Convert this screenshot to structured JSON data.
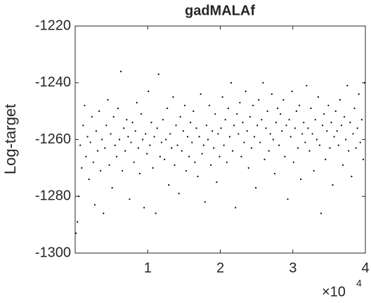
{
  "chart_data": {
    "type": "scatter",
    "title": "gadMALAf",
    "y_label": "Log-target",
    "x_multiplier": {
      "base": "×10",
      "exponent": "4"
    },
    "xlim": [
      0,
      40000
    ],
    "xticks": [
      {
        "value": 10000,
        "label": "1"
      },
      {
        "value": 20000,
        "label": "2"
      },
      {
        "value": 30000,
        "label": "3"
      },
      {
        "value": 40000,
        "label": "4"
      }
    ],
    "ylim": [
      -1300,
      -1220
    ],
    "yticks": [
      -1300,
      -1280,
      -1260,
      -1240,
      -1220
    ],
    "color": "#000000",
    "x": [
      100,
      300,
      500,
      700,
      900,
      1100,
      1300,
      1500,
      1700,
      1900,
      2100,
      2300,
      2500,
      2700,
      2900,
      3100,
      3300,
      3500,
      3700,
      3900,
      4100,
      4300,
      4500,
      4700,
      4900,
      5100,
      5300,
      5500,
      5700,
      5900,
      6100,
      6300,
      6500,
      6700,
      6900,
      7100,
      7300,
      7500,
      7700,
      7900,
      8100,
      8300,
      8500,
      8700,
      8900,
      9100,
      9300,
      9500,
      9700,
      9900,
      10100,
      10300,
      10500,
      10700,
      10900,
      11100,
      11300,
      11500,
      11700,
      11900,
      12100,
      12300,
      12500,
      12700,
      12900,
      13100,
      13300,
      13500,
      13700,
      13900,
      14100,
      14300,
      14500,
      14700,
      14900,
      15100,
      15300,
      15500,
      15700,
      15900,
      16100,
      16300,
      16500,
      16700,
      16900,
      17100,
      17300,
      17500,
      17700,
      17900,
      18100,
      18300,
      18500,
      18700,
      18900,
      19100,
      19300,
      19500,
      19700,
      19900,
      20100,
      20300,
      20500,
      20700,
      20900,
      21100,
      21300,
      21500,
      21700,
      21900,
      22100,
      22300,
      22500,
      22700,
      22900,
      23100,
      23300,
      23500,
      23700,
      23900,
      24100,
      24300,
      24500,
      24700,
      24900,
      25100,
      25300,
      25500,
      25700,
      25900,
      26100,
      26300,
      26500,
      26700,
      26900,
      27100,
      27300,
      27500,
      27700,
      27900,
      28100,
      28300,
      28500,
      28700,
      28900,
      29100,
      29300,
      29500,
      29700,
      29900,
      30100,
      30300,
      30500,
      30700,
      30900,
      31100,
      31300,
      31500,
      31700,
      31900,
      32100,
      32300,
      32500,
      32700,
      32900,
      33100,
      33300,
      33500,
      33700,
      33900,
      34100,
      34300,
      34500,
      34700,
      34900,
      35100,
      35300,
      35500,
      35700,
      35900,
      36100,
      36300,
      36500,
      36700,
      36900,
      37100,
      37300,
      37500,
      37700,
      37900,
      38100,
      38300,
      38500,
      38700,
      38900,
      39100,
      39300,
      39500,
      39700,
      39900
    ],
    "values": [
      -1293,
      -1289,
      -1280,
      -1262,
      -1270,
      -1255,
      -1248,
      -1266,
      -1259,
      -1274,
      -1261,
      -1252,
      -1268,
      -1283,
      -1257,
      -1264,
      -1250,
      -1271,
      -1260,
      -1286,
      -1263,
      -1255,
      -1246,
      -1269,
      -1258,
      -1277,
      -1252,
      -1262,
      -1266,
      -1249,
      -1260,
      -1236,
      -1271,
      -1256,
      -1264,
      -1253,
      -1259,
      -1281,
      -1261,
      -1254,
      -1268,
      -1257,
      -1247,
      -1263,
      -1272,
      -1251,
      -1260,
      -1284,
      -1258,
      -1265,
      -1243,
      -1262,
      -1254,
      -1270,
      -1259,
      -1286,
      -1256,
      -1237,
      -1266,
      -1261,
      -1253,
      -1267,
      -1260,
      -1249,
      -1276,
      -1258,
      -1263,
      -1245,
      -1269,
      -1255,
      -1262,
      -1279,
      -1252,
      -1264,
      -1257,
      -1248,
      -1271,
      -1259,
      -1266,
      -1254,
      -1261,
      -1250,
      -1268,
      -1256,
      -1273,
      -1259,
      -1244,
      -1265,
      -1262,
      -1282,
      -1255,
      -1260,
      -1248,
      -1269,
      -1257,
      -1263,
      -1251,
      -1275,
      -1258,
      -1266,
      -1256,
      -1245,
      -1262,
      -1253,
      -1268,
      -1249,
      -1259,
      -1240,
      -1264,
      -1255,
      -1284,
      -1251,
      -1258,
      -1247,
      -1266,
      -1254,
      -1261,
      -1243,
      -1257,
      -1270,
      -1252,
      -1263,
      -1248,
      -1259,
      -1277,
      -1255,
      -1246,
      -1261,
      -1253,
      -1240,
      -1267,
      -1256,
      -1250,
      -1264,
      -1258,
      -1244,
      -1260,
      -1272,
      -1254,
      -1249,
      -1262,
      -1251,
      -1257,
      -1246,
      -1266,
      -1255,
      -1281,
      -1253,
      -1259,
      -1243,
      -1268,
      -1256,
      -1250,
      -1263,
      -1248,
      -1274,
      -1258,
      -1254,
      -1261,
      -1241,
      -1256,
      -1264,
      -1249,
      -1258,
      -1271,
      -1253,
      -1260,
      -1245,
      -1262,
      -1286,
      -1255,
      -1251,
      -1267,
      -1257,
      -1248,
      -1263,
      -1254,
      -1276,
      -1259,
      -1250,
      -1257,
      -1262,
      -1246,
      -1255,
      -1269,
      -1252,
      -1260,
      -1241,
      -1264,
      -1254,
      -1273,
      -1258,
      -1249,
      -1263,
      -1256,
      -1244,
      -1261,
      -1253,
      -1267,
      -1240
    ]
  }
}
